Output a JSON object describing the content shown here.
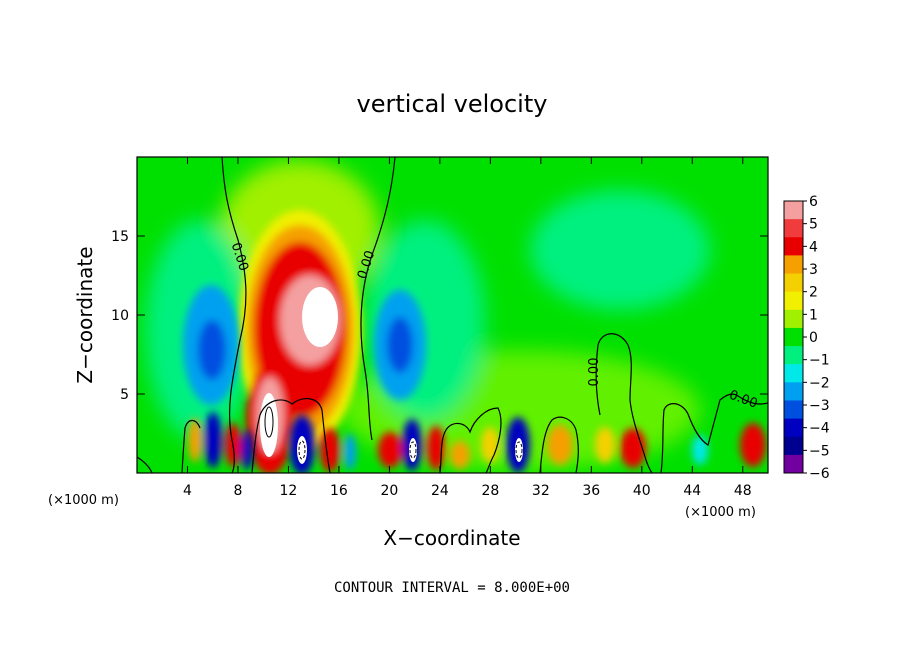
{
  "chart_data": {
    "type": "heatmap",
    "title": "vertical velocity",
    "xlabel": "X−coordinate",
    "ylabel": "Z−coordinate",
    "x_unit_left": "(×1000 m)",
    "x_unit_right": "(×1000 m)",
    "xlim": [
      0,
      50
    ],
    "ylim": [
      0,
      20
    ],
    "x_ticks": [
      4,
      8,
      12,
      16,
      20,
      24,
      28,
      32,
      36,
      40,
      44,
      48
    ],
    "x_tick_labels": [
      "4",
      "8",
      "12",
      "16",
      "20",
      "24",
      "28",
      "32",
      "36",
      "40",
      "44",
      "48"
    ],
    "y_ticks": [
      5,
      10,
      15
    ],
    "y_tick_labels": [
      "5",
      "10",
      "15"
    ],
    "colorbar": {
      "values": [
        6,
        5,
        4,
        3,
        2,
        1,
        0,
        -1,
        -2,
        -3,
        -4,
        -5,
        -6
      ],
      "labels": [
        "6",
        "5",
        "4",
        "3",
        "2",
        "1",
        "0",
        "−1",
        "−2",
        "−3",
        "−4",
        "−5",
        "−6"
      ],
      "colors": [
        "#f4a0a0",
        "#f03c3c",
        "#e80000",
        "#f5a000",
        "#f5d000",
        "#f0f000",
        "#a0f000",
        "#00e000",
        "#00f080",
        "#00e8e8",
        "#00a0f0",
        "#0050e0",
        "#0000c0",
        "#000090",
        "#7000a0"
      ]
    },
    "features": [
      {
        "type": "updraft",
        "x": 13.5,
        "z": 9.5,
        "w": 8,
        "note": "main updraft core, exceeds +6"
      },
      {
        "type": "updraft",
        "x": 11,
        "z": 4,
        "w": 7
      },
      {
        "type": "downdraft",
        "x": 6.5,
        "z": 7.5,
        "w": -3
      },
      {
        "type": "downdraft",
        "x": 21,
        "z": 7.5,
        "w": -3
      },
      {
        "type": "downdraft",
        "x": 13,
        "z": 1,
        "w": -6
      },
      {
        "type": "downdraft",
        "x": 22,
        "z": 1,
        "w": -6
      },
      {
        "type": "downdraft",
        "x": 30,
        "z": 1,
        "w": -5
      },
      {
        "type": "updraft",
        "x": 39.5,
        "z": 1.5,
        "w": 4
      },
      {
        "type": "updraft",
        "x": 49,
        "z": 1.5,
        "w": 4
      }
    ],
    "contour_labels": [
      "0.00",
      "0.00",
      "0.00",
      "0.00"
    ],
    "contour_interval_text": "CONTOUR INTERVAL = 8.000E+00"
  },
  "colors": {
    "background": "#00e000",
    "frame": "#000000"
  }
}
